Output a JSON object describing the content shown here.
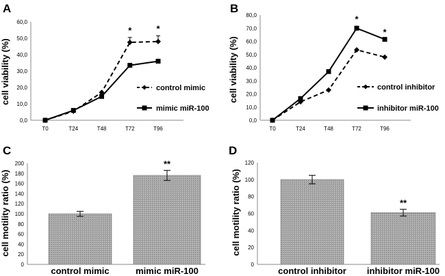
{
  "chart_data": [
    {
      "panel_label": "A",
      "type": "line",
      "ylabel": "cell viability (%)",
      "categories": [
        "T0",
        "T24",
        "T48",
        "T72",
        "T96"
      ],
      "ylim": [
        0,
        60
      ],
      "yticks": [
        "0,0",
        "10,0",
        "20,0",
        "30,0",
        "40,0",
        "50,0",
        "60,0"
      ],
      "series": [
        {
          "name": "control mimic",
          "style": "dashed",
          "marker": "diamond",
          "values": [
            0,
            5.5,
            17,
            47.5,
            48
          ],
          "errors": [
            0,
            0,
            0,
            3,
            3.5
          ]
        },
        {
          "name": "mimic miR-100",
          "style": "solid",
          "marker": "square",
          "values": [
            0,
            6,
            14.5,
            33.5,
            36
          ],
          "errors": [
            0,
            0,
            0,
            0,
            0
          ]
        }
      ],
      "significance": [
        {
          "category": "T72",
          "label": "*"
        },
        {
          "category": "T96",
          "label": "*"
        }
      ]
    },
    {
      "panel_label": "B",
      "type": "line",
      "ylabel": "cell viability (%)",
      "categories": [
        "T0",
        "T24",
        "T48",
        "T72",
        "T96"
      ],
      "ylim": [
        0,
        80
      ],
      "yticks": [
        "0,0",
        "10,0",
        "20,0",
        "30,0",
        "40,0",
        "50,0",
        "60,0",
        "70,0",
        "80,0"
      ],
      "series": [
        {
          "name": "control inhibitor",
          "style": "dashed",
          "marker": "diamond",
          "values": [
            0,
            14,
            23,
            53.5,
            48
          ],
          "errors": [
            0,
            0,
            0,
            0,
            0
          ]
        },
        {
          "name": "inhibitor miR-100",
          "style": "solid",
          "marker": "square",
          "values": [
            0,
            16.5,
            37,
            70,
            61.5
          ],
          "errors": [
            0,
            0,
            0,
            1.5,
            0
          ]
        }
      ],
      "significance": [
        {
          "category": "T72",
          "label": "*"
        },
        {
          "category": "T96",
          "label": "*"
        }
      ]
    },
    {
      "panel_label": "C",
      "type": "bar",
      "ylabel": "cell motility ratio (%)",
      "categories": [
        "control mimic",
        "mimic miR-100"
      ],
      "values": [
        100,
        176
      ],
      "errors": [
        5,
        10
      ],
      "ylim": [
        0,
        200
      ],
      "yticks": [
        "0",
        "20",
        "40",
        "60",
        "80",
        "100",
        "120",
        "140",
        "160",
        "180",
        "200"
      ],
      "significance": [
        {
          "category": "mimic miR-100",
          "label": "**"
        }
      ]
    },
    {
      "panel_label": "D",
      "type": "bar",
      "ylabel": "cell motility ratio (%)",
      "categories": [
        "control inhibitor",
        "inhibitor miR-100"
      ],
      "values": [
        100,
        61
      ],
      "errors": [
        5,
        4
      ],
      "ylim": [
        0,
        120
      ],
      "yticks": [
        "0",
        "20",
        "40",
        "60",
        "80",
        "100",
        "120"
      ],
      "significance": [
        {
          "category": "inhibitor miR-100",
          "label": "**"
        }
      ]
    }
  ]
}
